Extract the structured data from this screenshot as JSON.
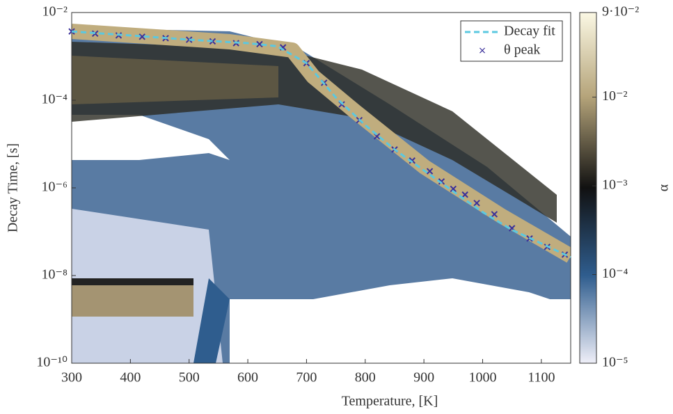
{
  "chart_data": {
    "type": "line",
    "x_label": "Temperature, [K]",
    "y_label": "Decay Time, [s]",
    "xlim": [
      300,
      1150
    ],
    "xticks": [
      300,
      400,
      500,
      600,
      700,
      800,
      900,
      1000,
      1100
    ],
    "ylim": [
      1e-10,
      0.01
    ],
    "y_scale": "log",
    "yticks": [
      {
        "value": 1e-10,
        "label": "10⁻¹⁰"
      },
      {
        "value": 1e-08,
        "label": "10⁻⁸"
      },
      {
        "value": 1e-06,
        "label": "10⁻⁶"
      },
      {
        "value": 0.0001,
        "label": "10⁻⁴"
      },
      {
        "value": 0.01,
        "label": "10⁻²"
      }
    ],
    "legend": "upper right",
    "series": [
      {
        "name": "Decay fit",
        "color": "#5bc8e0",
        "style": "dashed",
        "x": [
          300,
          400,
          500,
          600,
          650,
          700,
          750,
          800,
          850,
          900,
          950,
          1000,
          1050,
          1100,
          1150
        ],
        "values": [
          0.0037,
          0.003,
          0.0024,
          0.002,
          0.0017,
          0.0007,
          0.000115,
          2.7e-05,
          7.5e-06,
          2.5e-06,
          8.3e-07,
          2.8e-07,
          1.1e-07,
          5.4e-08,
          2.6e-08
        ]
      },
      {
        "name": "θ peak",
        "color": "#3a2f9a",
        "style": "markers",
        "x": [
          300,
          340,
          380,
          420,
          460,
          500,
          540,
          580,
          620,
          660,
          700,
          730,
          760,
          790,
          820,
          850,
          880,
          910,
          930,
          950,
          970,
          990,
          1020,
          1050,
          1080,
          1110,
          1140
        ],
        "values": [
          0.0037,
          0.0033,
          0.003,
          0.0028,
          0.0026,
          0.0024,
          0.0022,
          0.002,
          0.0019,
          0.0016,
          0.0007,
          0.00025,
          8e-05,
          3.5e-05,
          1.5e-05,
          7.5e-06,
          4.2e-06,
          2.4e-06,
          1.4e-06,
          9.5e-07,
          7e-07,
          4.5e-07,
          2.5e-07,
          1.2e-07,
          7e-08,
          4.5e-08,
          3e-08
        ]
      }
    ],
    "colorbar": {
      "label": "α",
      "scale": "log",
      "lim": [
        1e-05,
        0.09
      ],
      "ticks": [
        {
          "value": 0.09,
          "label": "9·10⁻²"
        },
        {
          "value": 0.01,
          "label": "10⁻²"
        },
        {
          "value": 0.001,
          "label": "10⁻³"
        },
        {
          "value": 0.0001,
          "label": "10⁻⁴"
        },
        {
          "value": 1e-05,
          "label": "10⁻⁵"
        }
      ]
    }
  }
}
